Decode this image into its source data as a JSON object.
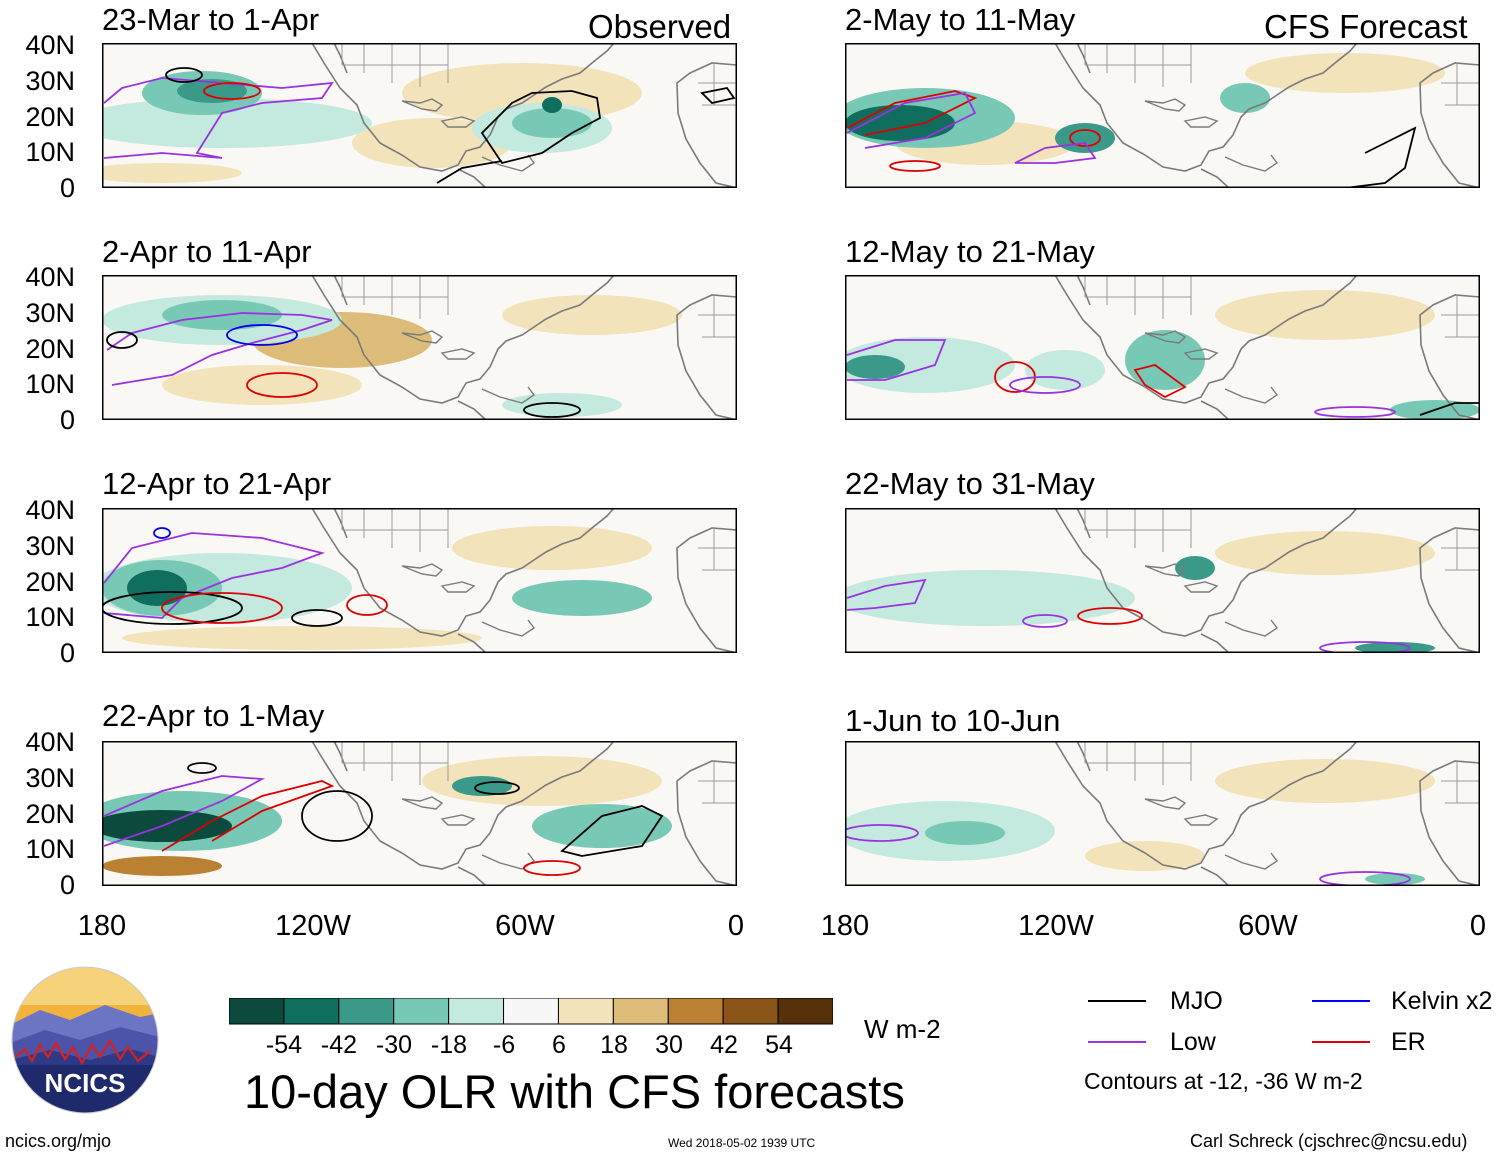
{
  "header": {
    "observed_label": "Observed",
    "forecast_label": "CFS Forecast"
  },
  "panels": [
    {
      "title": "23-Mar to 1-Apr"
    },
    {
      "title": "2-Apr to 11-Apr"
    },
    {
      "title": "12-Apr to 21-Apr"
    },
    {
      "title": "22-Apr to 1-May"
    },
    {
      "title": "2-May to 11-May"
    },
    {
      "title": "12-May to 21-May"
    },
    {
      "title": "22-May to 31-May"
    },
    {
      "title": "1-Jun to 10-Jun"
    }
  ],
  "axes": {
    "y_ticks": [
      "40N",
      "30N",
      "20N",
      "10N",
      "0"
    ],
    "x_ticks": [
      "180",
      "120W",
      "60W",
      "0"
    ]
  },
  "colorbar": {
    "labels": [
      "-54",
      "-42",
      "-30",
      "-18",
      "-6",
      "6",
      "18",
      "30",
      "42",
      "54"
    ],
    "colors": [
      "#0b4a3d",
      "#0f6e5e",
      "#3b998a",
      "#78c8b6",
      "#c4e9df",
      "#f7f7f7",
      "#f3e3bb",
      "#dcbc78",
      "#b98131",
      "#8a5317",
      "#553008"
    ],
    "units": "W m-2"
  },
  "legend": {
    "items": [
      {
        "label": "MJO",
        "color": "#000000"
      },
      {
        "label": "Kelvin x2",
        "color": "#0000ee"
      },
      {
        "label": "Low",
        "color": "#9a32e0"
      },
      {
        "label": "ER",
        "color": "#dd0000"
      }
    ],
    "note": "Contours at -12, -36 W m-2"
  },
  "footer": {
    "main_title": "10-day OLR with CFS forecasts",
    "left": "ncics.org/mjo",
    "center": "Wed 2018-05-02 1939 UTC",
    "right": "Carl Schreck (cjschrec@ncsu.edu)",
    "logo_text": "NCICS"
  }
}
